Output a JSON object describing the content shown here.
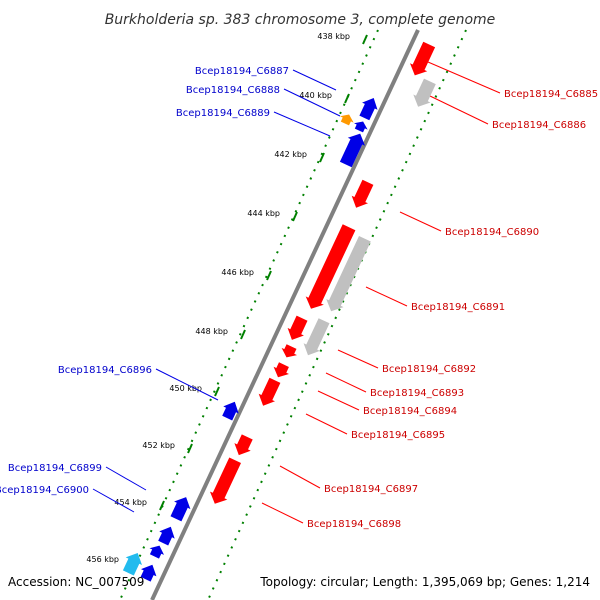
{
  "title": "Burkholderia sp. 383 chromosome 3, complete genome",
  "footer": {
    "accession": "Accession: NC_007509",
    "topology": "Topology: circular; Length: 1,395,069 bp; Genes: 1,214"
  },
  "colors": {
    "forward_gene": "#ff0000",
    "forward_other": "#c0c0c0",
    "reverse_gene": "#0000e6",
    "reverse_orange": "#ff9900",
    "reverse_cyan": "#22bbee",
    "backbone": "#808080",
    "ticks": "#008000",
    "forward_label": "#cc0000",
    "reverse_label": "#0000cc"
  },
  "ticks": [
    "438 kbp",
    "440 kbp",
    "442 kbp",
    "444 kbp",
    "446 kbp",
    "448 kbp",
    "450 kbp",
    "452 kbp",
    "454 kbp",
    "456 kbp"
  ],
  "forward_genes": [
    "Bcep18194_C6885",
    "Bcep18194_C6886",
    "Bcep18194_C6890",
    "Bcep18194_C6891",
    "Bcep18194_C6892",
    "Bcep18194_C6893",
    "Bcep18194_C6894",
    "Bcep18194_C6895",
    "Bcep18194_C6897",
    "Bcep18194_C6898"
  ],
  "reverse_genes": [
    "Bcep18194_C6887",
    "Bcep18194_C6888",
    "Bcep18194_C6889",
    "Bcep18194_C6896",
    "Bcep18194_C6899",
    "Bcep18194_C6900"
  ]
}
